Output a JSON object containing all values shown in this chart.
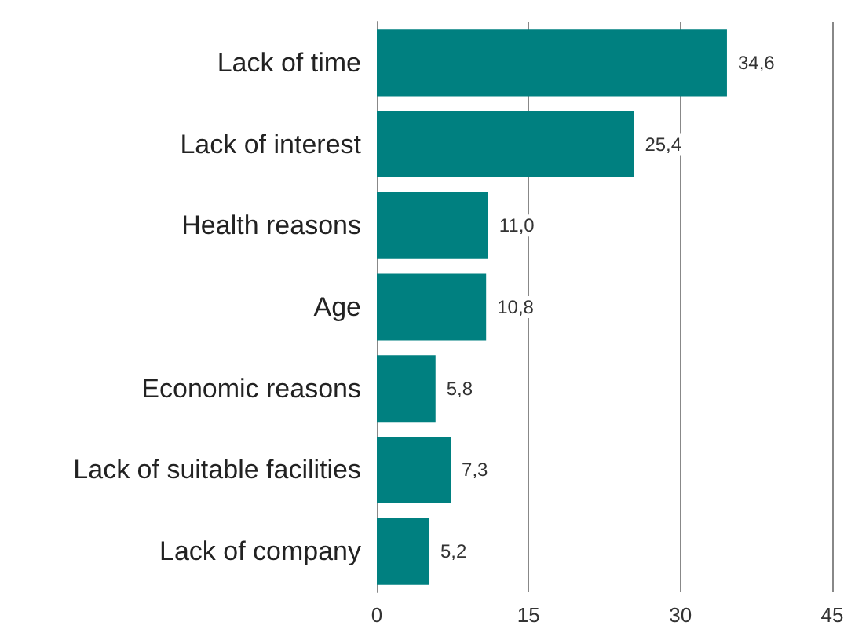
{
  "chart_data": {
    "type": "bar",
    "orientation": "horizontal",
    "categories": [
      "Lack of time",
      "Lack of interest",
      "Health reasons",
      "Age",
      "Economic reasons",
      "Lack of suitable facilities",
      "Lack of company"
    ],
    "values": [
      34.6,
      25.4,
      11.0,
      10.8,
      5.8,
      7.3,
      5.2
    ],
    "value_labels": [
      "34,6",
      "25,4",
      "11,0",
      "10,8",
      "5,8",
      "7,3",
      "5,2"
    ],
    "color": "#008080",
    "xlim": [
      0,
      45
    ],
    "xticks": [
      0,
      15,
      30,
      45
    ],
    "grid": "x"
  }
}
